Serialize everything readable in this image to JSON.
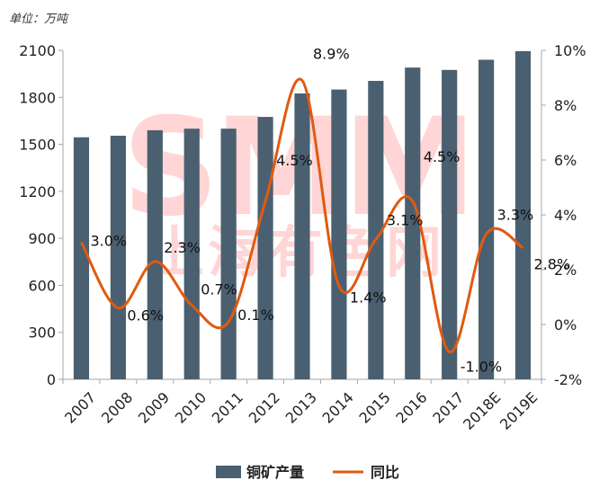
{
  "unit_label": "单位：万吨",
  "watermark": {
    "big": "SMM",
    "small": "上海有色网"
  },
  "colors": {
    "bar": "#4a6070",
    "line": "#e05a10",
    "axis": "#a6a6a6"
  },
  "chart_data": {
    "type": "bar+line",
    "title": "",
    "categories": [
      "2007",
      "2008",
      "2009",
      "2010",
      "2011",
      "2012",
      "2013",
      "2014",
      "2015",
      "2016",
      "2017",
      "2018E",
      "2019E"
    ],
    "series": [
      {
        "name": "铜矿产量",
        "type": "bar",
        "axis": "left",
        "values": [
          1545,
          1555,
          1590,
          1600,
          1600,
          1675,
          1825,
          1850,
          1905,
          1990,
          1975,
          2040,
          2095
        ]
      },
      {
        "name": "同比",
        "type": "line",
        "axis": "right",
        "values": [
          3.0,
          0.6,
          2.3,
          0.7,
          0.1,
          4.5,
          8.9,
          1.4,
          3.1,
          4.5,
          -1.0,
          3.3,
          2.8
        ],
        "labels": [
          "3.0%",
          "0.6%",
          "2.3%",
          "0.7%",
          "0.1%",
          "4.5%",
          "8.9%",
          "1.4%",
          "3.1%",
          "4.5%",
          "-1.0%",
          "3.3%",
          "2.8%"
        ]
      }
    ],
    "left_axis": {
      "min": 0,
      "max": 2100,
      "ticks": [
        "0",
        "300",
        "600",
        "900",
        "1200",
        "1500",
        "1800",
        "2100"
      ]
    },
    "right_axis": {
      "min": -2,
      "max": 10,
      "ticks": [
        "-2%",
        "0%",
        "2%",
        "4%",
        "6%",
        "8%",
        "10%"
      ]
    },
    "legend": {
      "placement": "bottom",
      "items": [
        "铜矿产量",
        "同比"
      ]
    }
  }
}
